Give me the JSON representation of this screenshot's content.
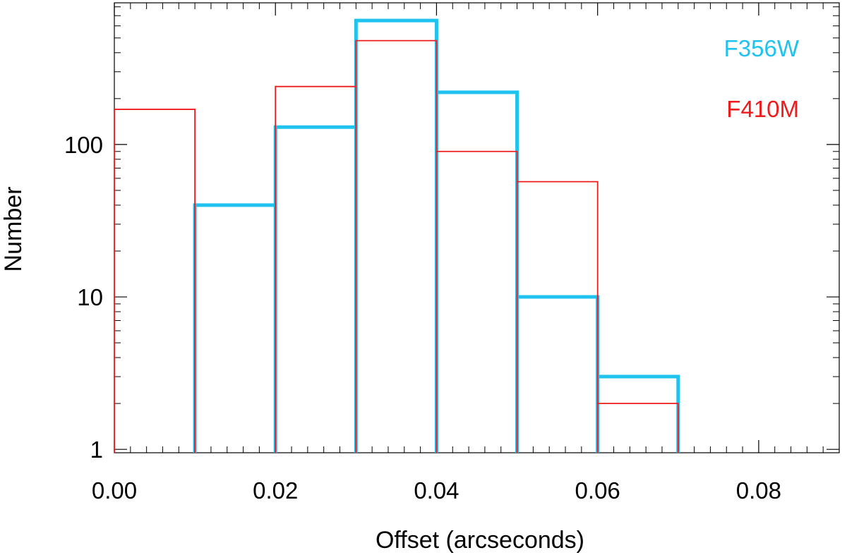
{
  "chart_data": {
    "type": "histogram",
    "xlabel": "Offset (arcseconds)",
    "ylabel": "Number",
    "xlim": [
      0.0,
      0.09
    ],
    "ylim": [
      0.95,
      850
    ],
    "y_scale": "log",
    "grid": false,
    "legend_placement": "top-right",
    "x_ticks": [
      "0.00",
      "0.02",
      "0.04",
      "0.06",
      "0.08"
    ],
    "x_tick_values": [
      0.0,
      0.02,
      0.04,
      0.06,
      0.08
    ],
    "y_ticks": [
      "1",
      "10",
      "100"
    ],
    "y_tick_values": [
      1,
      10,
      100
    ],
    "bin_edges": [
      0.0,
      0.01,
      0.02,
      0.03,
      0.04,
      0.05,
      0.06,
      0.07,
      0.08,
      0.09
    ],
    "series": [
      {
        "name": "F356W",
        "color": "#1fc3ee",
        "values": [
          0,
          40,
          130,
          650,
          220,
          10,
          3,
          0,
          0
        ]
      },
      {
        "name": "F410M",
        "color": "#ee1c1c",
        "values": [
          170,
          0,
          240,
          480,
          90,
          57,
          2,
          0,
          0
        ]
      }
    ]
  }
}
